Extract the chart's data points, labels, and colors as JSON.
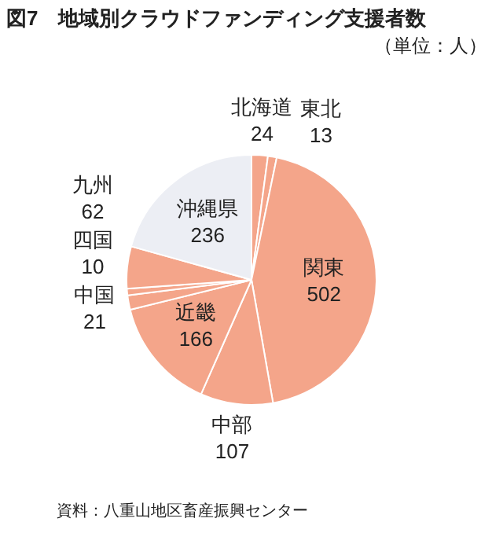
{
  "chart_data": {
    "type": "pie",
    "title": "図7　地域別クラウドファンディング支援者数",
    "subtitle": "（単位：人）",
    "categories": [
      "北海道",
      "東北",
      "関東",
      "中部",
      "近畿",
      "中国",
      "四国",
      "九州",
      "沖縄県"
    ],
    "values": [
      24,
      13,
      502,
      107,
      166,
      21,
      10,
      62,
      236
    ],
    "colors": [
      "#f4a58a",
      "#f4a58a",
      "#f4a58a",
      "#f4a58a",
      "#f4a58a",
      "#f4a58a",
      "#f4a58a",
      "#f4a58a",
      "#eceef4"
    ],
    "data_labels": true,
    "legend": false,
    "annotations": [
      "資料：八重山地区畜産振興センター"
    ]
  }
}
